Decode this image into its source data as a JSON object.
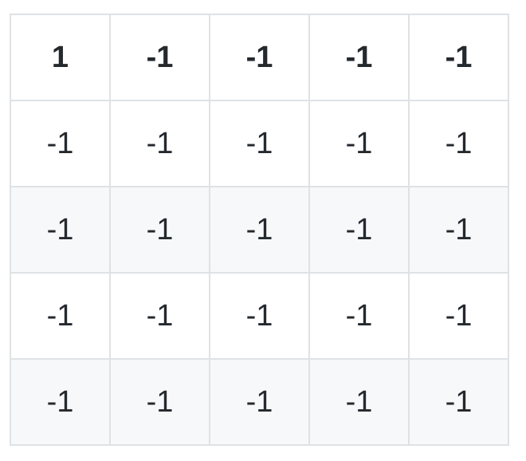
{
  "table": {
    "rows": [
      [
        "1",
        "-1",
        "-1",
        "-1",
        "-1"
      ],
      [
        "-1",
        "-1",
        "-1",
        "-1",
        "-1"
      ],
      [
        "-1",
        "-1",
        "-1",
        "-1",
        "-1"
      ],
      [
        "-1",
        "-1",
        "-1",
        "-1",
        "-1"
      ],
      [
        "-1",
        "-1",
        "-1",
        "-1",
        "-1"
      ]
    ]
  },
  "colors": {
    "border": "#dfe2e5",
    "stripe": "#f6f8fa",
    "text": "#24292e"
  }
}
